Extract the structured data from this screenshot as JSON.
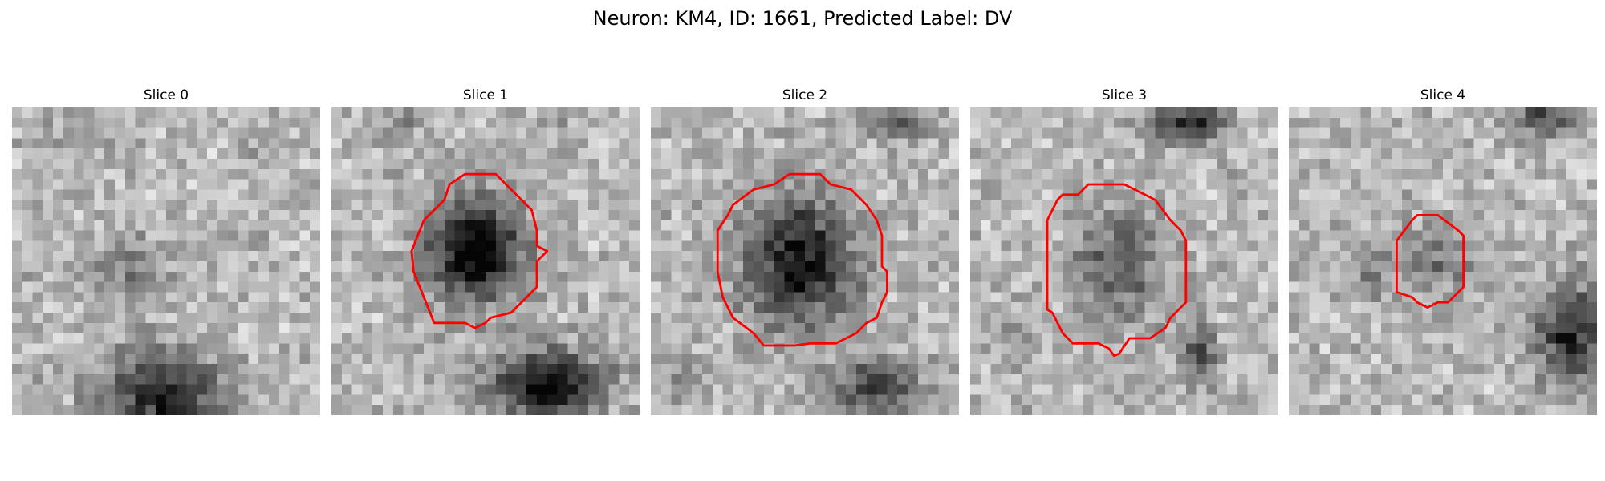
{
  "title": "Neuron: KM4, ID: 1661, Predicted Label: DV",
  "panels": [
    {
      "title": "Slice 0",
      "has_contour": false
    },
    {
      "title": "Slice 1",
      "has_contour": true
    },
    {
      "title": "Slice 2",
      "has_contour": true
    },
    {
      "title": "Slice 3",
      "has_contour": true
    },
    {
      "title": "Slice 4",
      "has_contour": true
    }
  ],
  "colors": {
    "contour": "#ff0000",
    "background": "#ffffff"
  }
}
